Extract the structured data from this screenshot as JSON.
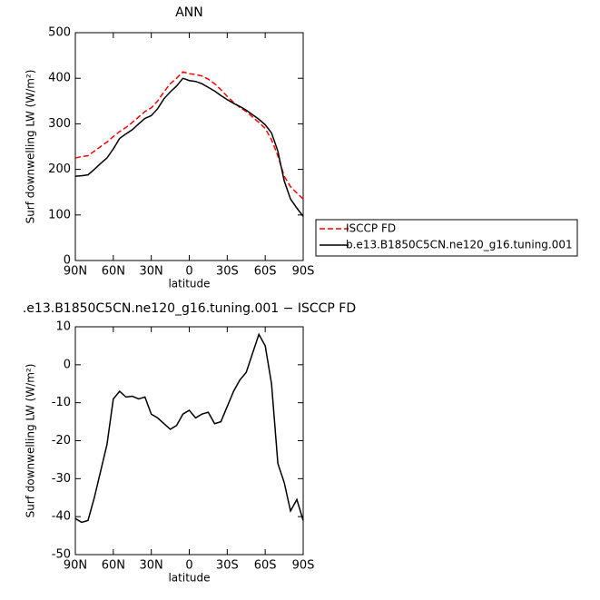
{
  "chart_data": [
    {
      "type": "line",
      "title": "ANN",
      "x_label": "latitude",
      "y_label": "Surf downwelling LW (W/m²)",
      "x": [
        90,
        85,
        80,
        75,
        70,
        65,
        60,
        55,
        50,
        45,
        40,
        35,
        30,
        25,
        20,
        15,
        10,
        5,
        0,
        -5,
        -10,
        -15,
        -20,
        -25,
        -30,
        -35,
        -40,
        -45,
        -50,
        -55,
        -60,
        -65,
        -70,
        -75,
        -80,
        -85,
        -90
      ],
      "series": [
        {
          "name": "ISCCP FD",
          "color": "#ff0000",
          "line_style": "dashed",
          "values": [
            225,
            228,
            230,
            240,
            250,
            260,
            272,
            283,
            292,
            303,
            315,
            327,
            335,
            350,
            370,
            388,
            400,
            414,
            410,
            408,
            405,
            398,
            388,
            375,
            360,
            347,
            336,
            327,
            315,
            303,
            290,
            265,
            230,
            185,
            162,
            148,
            135
          ]
        },
        {
          "name": "b.e13.B1850C5CN.ne120_g16.tuning.001",
          "color": "#000000",
          "line_style": "solid",
          "values": [
            185,
            186,
            188,
            200,
            213,
            225,
            245,
            268,
            278,
            287,
            300,
            312,
            318,
            333,
            355,
            370,
            383,
            400,
            395,
            393,
            388,
            380,
            372,
            362,
            353,
            345,
            338,
            330,
            320,
            310,
            298,
            280,
            240,
            175,
            135,
            115,
            97
          ]
        }
      ],
      "xlim": [
        90,
        -90
      ],
      "xticks": [
        {
          "value": 90,
          "label": "90N"
        },
        {
          "value": 60,
          "label": "60N"
        },
        {
          "value": 30,
          "label": "30N"
        },
        0,
        {
          "value": -30,
          "label": "30S"
        },
        {
          "value": -60,
          "label": "60S"
        },
        {
          "value": -90,
          "label": "90S"
        }
      ],
      "ylim": [
        0,
        500
      ],
      "yticks": [
        0,
        100,
        200,
        300,
        400,
        500
      ],
      "legend": "right"
    },
    {
      "type": "line",
      "title": ".e13.B1850C5CN.ne120_g16.tuning.001 − ISCCP FD",
      "x_label": "latitude",
      "y_label": "Surf downwelling LW (W/m²)",
      "x": [
        90,
        85,
        80,
        75,
        70,
        65,
        60,
        55,
        50,
        45,
        40,
        35,
        30,
        25,
        20,
        15,
        10,
        5,
        0,
        -5,
        -10,
        -15,
        -20,
        -25,
        -30,
        -35,
        -40,
        -45,
        -50,
        -55,
        -60,
        -65,
        -70,
        -75,
        -80,
        -85,
        -90
      ],
      "series": [
        {
          "color": "#000000",
          "line_style": "solid",
          "values": [
            -40.5,
            -41.5,
            -41,
            -35,
            -28,
            -21,
            -9,
            -7,
            -8.5,
            -8.3,
            -9,
            -8.5,
            -13,
            -14,
            -15.5,
            -17,
            -16,
            -13,
            -12,
            -14,
            -13,
            -12.5,
            -15.5,
            -15,
            -11,
            -7,
            -4,
            -2,
            3,
            8,
            5,
            -5,
            -26,
            -31,
            -38.5,
            -35.5,
            -41
          ]
        }
      ],
      "xlim": [
        90,
        -90
      ],
      "xticks": [
        {
          "value": 90,
          "label": "90N"
        },
        {
          "value": 60,
          "label": "60N"
        },
        {
          "value": 30,
          "label": "30N"
        },
        0,
        {
          "value": -30,
          "label": "30S"
        },
        {
          "value": -60,
          "label": "60S"
        },
        {
          "value": -90,
          "label": "90S"
        }
      ],
      "ylim": [
        -50,
        10
      ],
      "yticks": [
        -50,
        -40,
        -30,
        -20,
        -10,
        0,
        10
      ]
    }
  ]
}
